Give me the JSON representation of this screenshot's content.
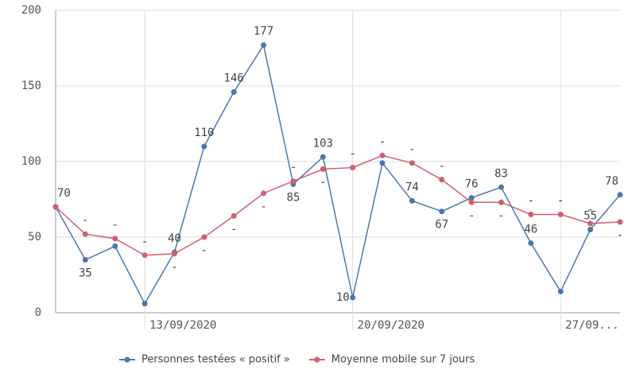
{
  "chart_data": {
    "type": "line",
    "categories": [
      null,
      null,
      null,
      "13/09/2020",
      null,
      null,
      null,
      null,
      null,
      null,
      "20/09/2020",
      null,
      null,
      null,
      null,
      null,
      null,
      "27/09...",
      null,
      null
    ],
    "series": [
      {
        "name": "Personnes testées « positif »",
        "color": "#4a78ad",
        "values": [
          70,
          35,
          44,
          6,
          40,
          110,
          146,
          177,
          85,
          103,
          10,
          99,
          74,
          67,
          76,
          83,
          46,
          14,
          55,
          78
        ],
        "value_labels": [
          "70",
          "35",
          null,
          null,
          "40",
          "110",
          "146",
          "177",
          "85",
          "103",
          "10",
          null,
          "74",
          "67",
          "76",
          "83",
          "46",
          null,
          "55",
          "78"
        ]
      },
      {
        "name": "Moyenne mobile sur 7 jours",
        "color": "#d05f70",
        "values": [
          70,
          52,
          49,
          38,
          39,
          50,
          64,
          79,
          87,
          95,
          96,
          104,
          99,
          88,
          73,
          73,
          65,
          65,
          59,
          60
        ],
        "value_labels": [
          null,
          "-",
          "-",
          "-",
          "-",
          "-",
          "-",
          "-",
          "-",
          "-",
          "-",
          "-",
          "-",
          "-",
          "-",
          "-",
          "-",
          "-",
          "-",
          "-"
        ]
      }
    ],
    "ylim": [
      0,
      200
    ],
    "yticks": [
      0,
      50,
      100,
      150,
      200
    ],
    "grid": true
  }
}
